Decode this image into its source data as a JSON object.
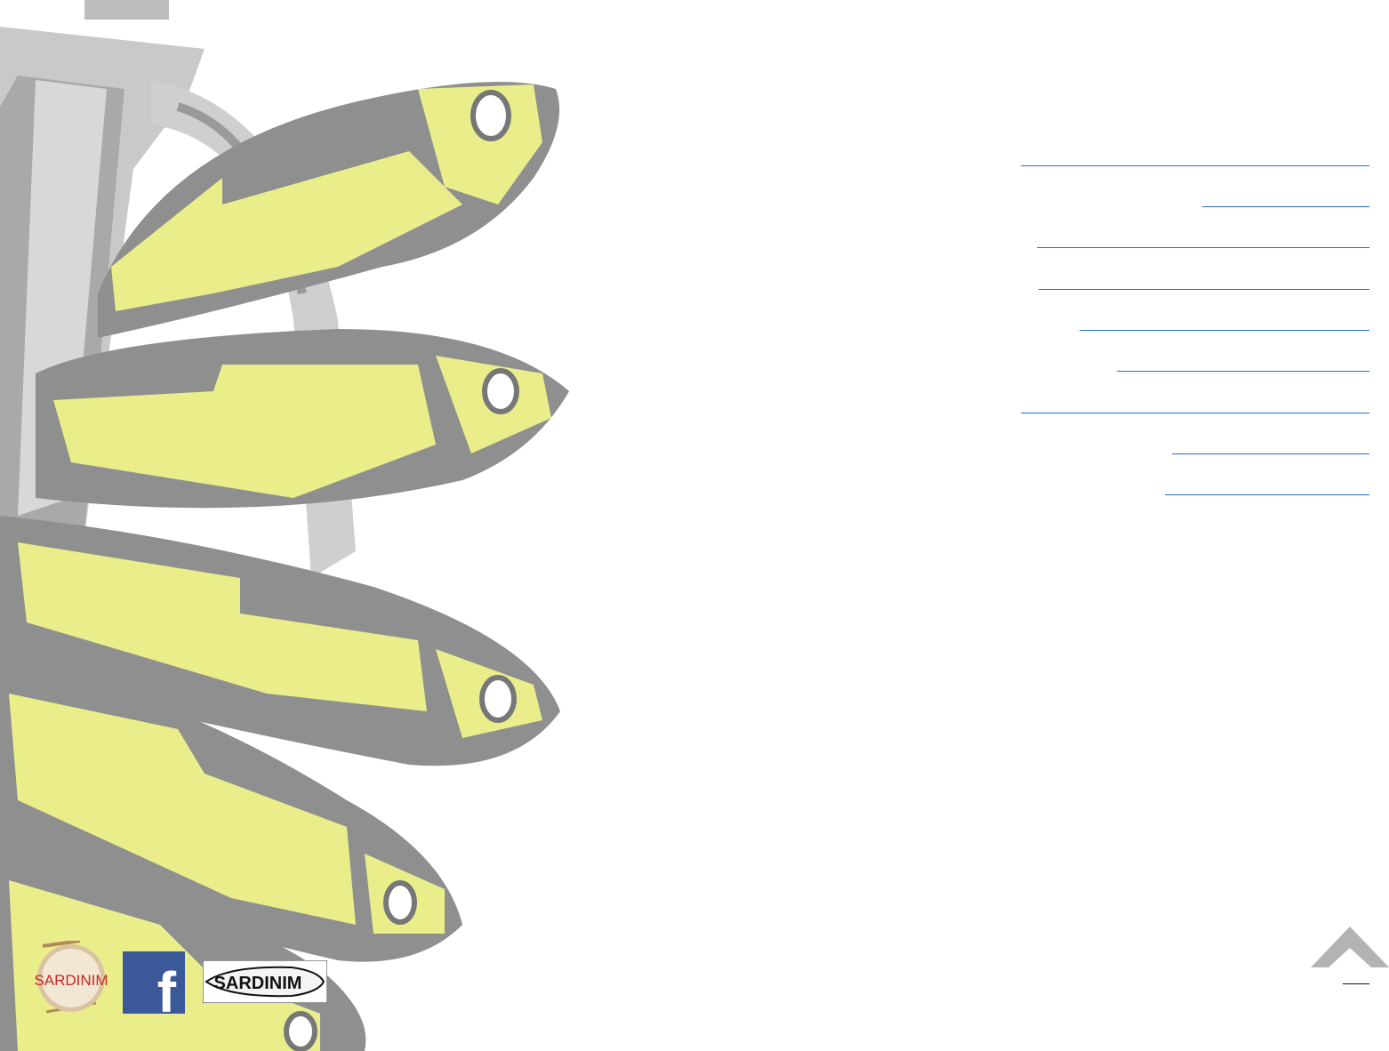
{
  "header": {
    "title": ""
  },
  "menu": {
    "items": [
      {
        "label": ""
      },
      {
        "label": ""
      },
      {
        "label": ""
      },
      {
        "label": ""
      },
      {
        "label": ""
      },
      {
        "label": ""
      },
      {
        "label": ""
      },
      {
        "label": ""
      },
      {
        "label": ""
      }
    ]
  },
  "footer": {
    "logos": [
      {
        "icon": "sardinim-drum-logo-icon",
        "text": "SARDINIM"
      },
      {
        "icon": "facebook-icon",
        "text": "f"
      },
      {
        "icon": "sardinim-fish-logo-icon",
        "text": "SARDINIM"
      }
    ]
  },
  "scroll_top": {
    "icon": "chevron-up-icon"
  },
  "colors": {
    "link": "#1f6fd0",
    "fish_gray": "#8f8f8f",
    "fish_yellow": "#e9ee8a",
    "facebook": "#3b5998"
  }
}
